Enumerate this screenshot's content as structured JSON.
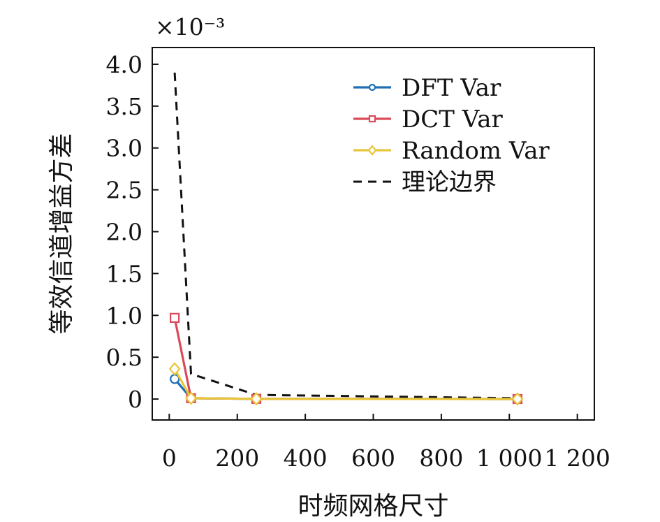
{
  "chart_data": {
    "type": "line",
    "title": "",
    "xlabel": "时频网格尺寸",
    "ylabel": "等效信道增益方差",
    "y_scale_note": "×10⁻³",
    "xlim": [
      -50,
      1250
    ],
    "ylim": [
      -0.00025,
      0.0042
    ],
    "x_ticks": [
      0,
      200,
      400,
      600,
      800,
      1000,
      1200
    ],
    "x_tick_labels": [
      "0",
      "200",
      "400",
      "600",
      "800",
      "1 000",
      "1 200"
    ],
    "y_ticks": [
      0,
      0.0005,
      0.001,
      0.0015,
      0.002,
      0.0025,
      0.003,
      0.0035,
      0.004
    ],
    "y_tick_labels": [
      "0",
      "0.5",
      "1.0",
      "1.5",
      "2.0",
      "2.5",
      "3.0",
      "3.5",
      "4.0"
    ],
    "grid": false,
    "legend_position": "top-right",
    "series": [
      {
        "name": "DFT Var",
        "color": "#1f6fb5",
        "marker": "circle",
        "line_style": "solid",
        "x": [
          16,
          64,
          256,
          1024
        ],
        "y": [
          0.00024,
          1e-05,
          2e-06,
          5e-07
        ]
      },
      {
        "name": "DCT Var",
        "color": "#d94a5a",
        "marker": "square",
        "line_style": "solid",
        "x": [
          16,
          64,
          256,
          1024
        ],
        "y": [
          0.00097,
          1e-05,
          2e-06,
          5e-07
        ]
      },
      {
        "name": "Random Var",
        "color": "#e8c53a",
        "marker": "diamond",
        "line_style": "solid",
        "x": [
          16,
          64,
          256,
          1024
        ],
        "y": [
          0.00036,
          1e-05,
          2e-06,
          5e-07
        ]
      },
      {
        "name": "理论边界",
        "color": "#111111",
        "marker": "none",
        "line_style": "dashed",
        "x": [
          16,
          64,
          256,
          1024
        ],
        "y": [
          0.0039,
          0.0003,
          5e-05,
          1e-05
        ]
      }
    ]
  }
}
